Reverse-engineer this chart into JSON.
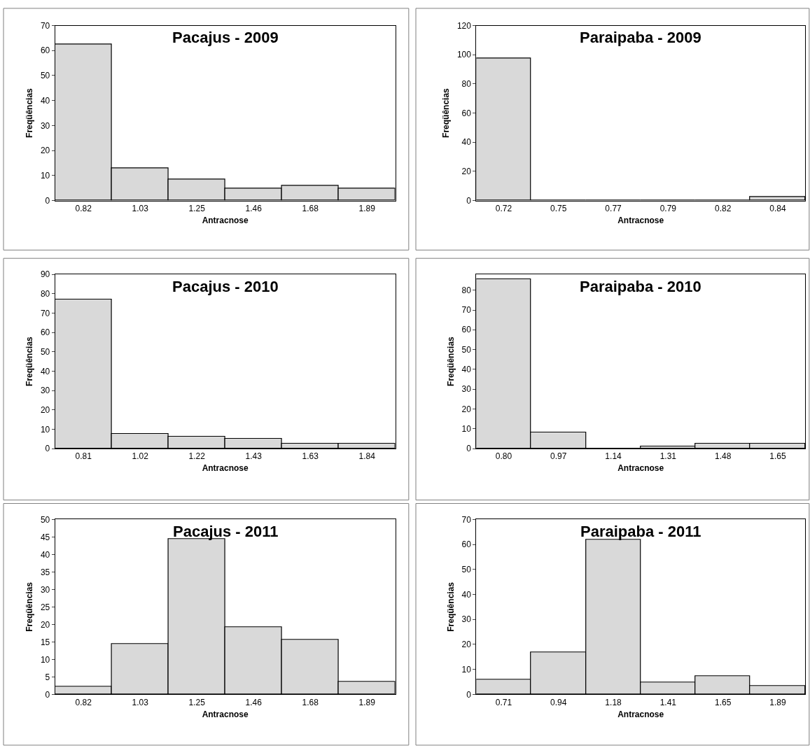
{
  "chart_data": [
    {
      "type": "bar",
      "title": "Pacajus - 2009",
      "xlabel": "Antracnose",
      "ylabel": "Freqüências",
      "categories": [
        "0.82",
        "1.03",
        "1.25",
        "1.46",
        "1.68",
        "1.89"
      ],
      "values": [
        62.5,
        13,
        8.5,
        4.8,
        6,
        4.8
      ],
      "color": "#d9d9d9",
      "ylim": [
        0,
        70
      ],
      "yticks": [
        0,
        10,
        20,
        30,
        40,
        50,
        60,
        70
      ]
    },
    {
      "type": "bar",
      "title": "Paraipaba - 2009",
      "xlabel": "Antracnose",
      "ylabel": "Freqüências",
      "categories": [
        "0.72",
        "0.75",
        "0.77",
        "0.79",
        "0.82",
        "0.84"
      ],
      "values": [
        97.5,
        0,
        0,
        0,
        0,
        2.5
      ],
      "color": "#d9d9d9",
      "ylim": [
        0,
        120
      ],
      "yticks": [
        0,
        20,
        40,
        60,
        80,
        100,
        120
      ]
    },
    {
      "type": "bar",
      "title": "Pacajus - 2010",
      "xlabel": "Antracnose",
      "ylabel": "Freqüências",
      "categories": [
        "0.81",
        "1.02",
        "1.22",
        "1.43",
        "1.63",
        "1.84"
      ],
      "values": [
        77,
        7.5,
        6,
        5,
        2.5,
        2.5
      ],
      "color": "#d9d9d9",
      "ylim": [
        0,
        90
      ],
      "yticks": [
        0,
        10,
        20,
        30,
        40,
        50,
        60,
        70,
        80,
        90
      ]
    },
    {
      "type": "bar",
      "title": "Paraipaba - 2010",
      "xlabel": "Antracnose",
      "ylabel": "Freqüências",
      "categories": [
        "0.80",
        "0.97",
        "1.14",
        "1.31",
        "1.48",
        "1.65"
      ],
      "values": [
        85.5,
        8.2,
        0,
        1,
        2.3,
        2.3
      ],
      "color": "#d9d9d9",
      "ylim": [
        0,
        88
      ],
      "yticks": [
        0,
        10,
        20,
        30,
        40,
        50,
        60,
        70,
        80
      ]
    },
    {
      "type": "bar",
      "title": "Pacajus - 2011",
      "xlabel": "Antracnose",
      "ylabel": "Freqüências",
      "categories": [
        "0.82",
        "1.03",
        "1.25",
        "1.46",
        "1.68",
        "1.89"
      ],
      "values": [
        2.3,
        14.5,
        44.5,
        19.3,
        15.7,
        3.6
      ],
      "color": "#d9d9d9",
      "ylim": [
        0,
        50
      ],
      "yticks": [
        0,
        5,
        10,
        15,
        20,
        25,
        30,
        35,
        40,
        45,
        50
      ]
    },
    {
      "type": "bar",
      "title": "Paraipaba - 2011",
      "xlabel": "Antracnose",
      "ylabel": "Freqüências",
      "categories": [
        "0.71",
        "0.94",
        "1.18",
        "1.41",
        "1.65",
        "1.89"
      ],
      "values": [
        6,
        16.8,
        62,
        4.8,
        7.2,
        3.4
      ],
      "color": "#d9d9d9",
      "ylim": [
        0,
        70
      ],
      "yticks": [
        0,
        10,
        20,
        30,
        40,
        50,
        60,
        70
      ]
    }
  ]
}
